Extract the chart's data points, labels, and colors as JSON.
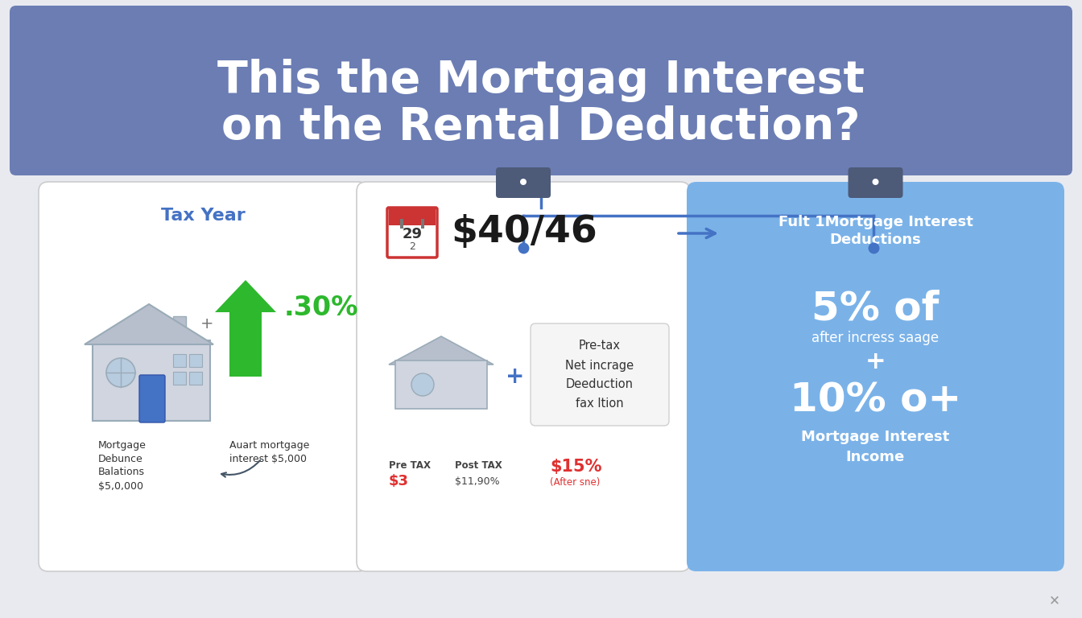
{
  "bg_color": "#e8eaf0",
  "header_bg": "#6b7db3",
  "header_text_line1": "This the Mortgag Interest",
  "header_text_line2": "on the Rental Deduction?",
  "header_text_color": "#ffffff",
  "card1_title": "Tax Year",
  "card1_title_color": "#4472c4",
  "card1_line1": "Mortgage",
  "card1_line2": "Debunce",
  "card1_line3": "Balations",
  "card1_line4": "$5,0,000",
  "card1_right1": "Auart mortgage",
  "card1_right2": "interest $5,000",
  "card1_pct": ".30%",
  "card1_pct_color": "#2db82d",
  "card2_amount": "$40/46",
  "card2_pretax_label": "Pre TAX",
  "card2_pretax_val": "$3",
  "card2_posttax_label": "Post TAX",
  "card2_posttax_val": "$11,90%",
  "card2_pct": "$15%",
  "card2_pct_label": "(After sne)",
  "card2_pct_color": "#e03030",
  "card2_box_line1": "Pre-tax",
  "card2_box_line2": "Net incrage",
  "card2_box_line3": "Deeduction",
  "card2_box_line4": "fax ltion",
  "card3_bg": "#7ab2e8",
  "card3_title_line1": "Fult 1Mortgage Interest",
  "card3_title_line2": "Deductions",
  "card3_pct1": "5% of",
  "card3_sub1": "after incress saage",
  "card3_plus": "+",
  "card3_pct2": "10% o+",
  "card3_sub2_line1": "Mortgage Interest",
  "card3_sub2_line2": "Income",
  "connector_color": "#4472c4",
  "arrow_color": "#4472c4",
  "clip_color": "#4d5a78",
  "house_roof": "#b8bfcc",
  "house_wall": "#d0d5e0",
  "house_window": "#b8cce0",
  "house_door": "#4472c4",
  "arrow_green": "#2db82d"
}
